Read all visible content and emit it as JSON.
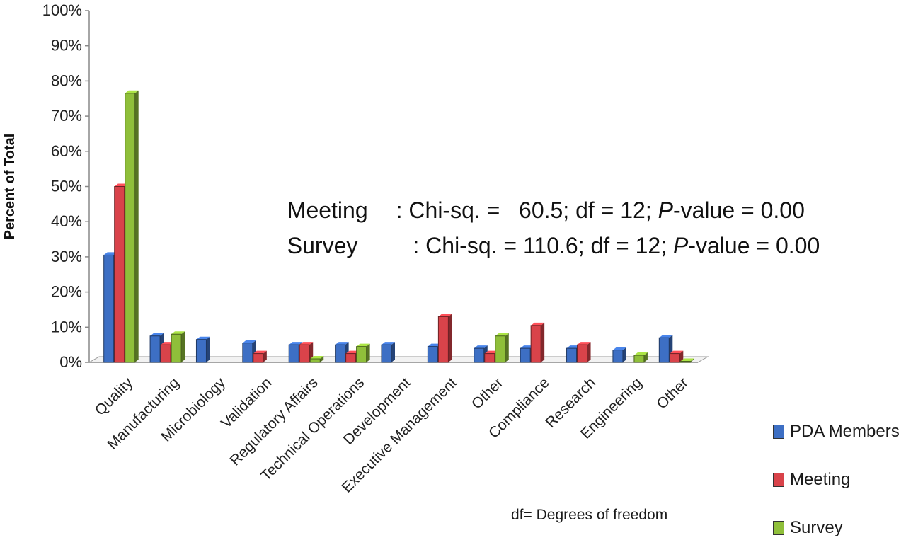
{
  "chart_data": {
    "type": "bar",
    "ylabel": "Percent of Total",
    "ylim": [
      0,
      100
    ],
    "yticks": [
      "0%",
      "10%",
      "20%",
      "30%",
      "40%",
      "50%",
      "60%",
      "70%",
      "80%",
      "90%",
      "100%"
    ],
    "categories": [
      "Quality",
      "Manufacturing",
      "Microbiology",
      "Validation",
      "Regulatory Affairs",
      "Technical Operations",
      "Development",
      "Executive Management",
      "Other",
      "Compliance",
      "Research",
      "Engineering",
      "Other"
    ],
    "series": [
      {
        "name": "PDA Members",
        "color": "#3d6fc4",
        "values": [
          30.5,
          7.5,
          6.5,
          5.5,
          5.0,
          5.0,
          5.0,
          4.5,
          4.0,
          4.0,
          4.0,
          3.5,
          7.0
        ]
      },
      {
        "name": "Meeting",
        "color": "#d9434a",
        "values": [
          50.0,
          5.0,
          0,
          2.5,
          5.0,
          2.5,
          0,
          13.0,
          2.5,
          10.5,
          5.0,
          0,
          2.5
        ]
      },
      {
        "name": "Survey",
        "color": "#8fbf3a",
        "values": [
          76.5,
          8.0,
          0,
          0,
          1.0,
          4.5,
          0,
          0,
          7.5,
          0,
          0,
          2.0,
          0.3
        ]
      }
    ],
    "grid": false,
    "legend_position": "bottom-right"
  },
  "annotations": {
    "line1": {
      "group": "Meeting",
      "colon": ":",
      "stat": "Chi-sq. =   60.5; df = 12; ",
      "p": "P",
      "rest": "-value = 0.00"
    },
    "line2": {
      "group": "Survey",
      "colon": ":",
      "stat": "Chi-sq. = 110.6; df = 12; ",
      "p": "P",
      "rest": "-value = 0.00"
    },
    "note": "df= Degrees  of freedom"
  }
}
